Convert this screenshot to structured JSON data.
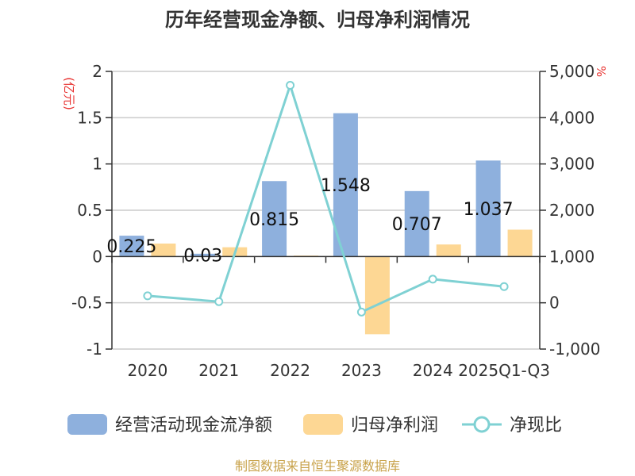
{
  "chart_data": {
    "type": "bar",
    "title": "历年经营现金净额、归母净利润情况",
    "categories": [
      "2020",
      "2021",
      "2022",
      "2023",
      "2024",
      "2025Q1-Q3"
    ],
    "series": [
      {
        "name": "经营活动现金流净额",
        "axis": "left",
        "kind": "bar",
        "color": "#8eb0dd",
        "values": [
          0.225,
          0.03,
          0.815,
          1.548,
          0.707,
          1.037
        ],
        "labels": [
          "0.225",
          "0.03",
          "0.815",
          "1.548",
          "0.707",
          "1.037"
        ]
      },
      {
        "name": "归母净利润",
        "axis": "left",
        "kind": "bar",
        "color": "#fdd794",
        "values": [
          0.14,
          0.1,
          0.01,
          -0.84,
          0.13,
          0.29
        ]
      },
      {
        "name": "净现比",
        "axis": "right",
        "kind": "line",
        "color": "#7fd1d3",
        "values": [
          150,
          25,
          4700,
          -200,
          510,
          350
        ]
      }
    ],
    "left_axis": {
      "unit": "(亿元)",
      "ylim": [
        -1,
        2
      ],
      "ticks": [
        -1,
        -0.5,
        0,
        0.5,
        1,
        1.5,
        2
      ],
      "tick_labels": [
        "-1",
        "-0.5",
        "0",
        "0.5",
        "1",
        "1.5",
        "2"
      ]
    },
    "right_axis": {
      "unit": "%",
      "ylim": [
        -1000,
        5000
      ],
      "ticks": [
        -1000,
        0,
        1000,
        2000,
        3000,
        4000,
        5000
      ],
      "tick_labels": [
        "-1,000",
        "0",
        "1,000",
        "2,000",
        "3,000",
        "4,000",
        "5,000"
      ]
    },
    "grid": true,
    "legend_position": "bottom",
    "source": "制图数据来自恒生聚源数据库"
  }
}
